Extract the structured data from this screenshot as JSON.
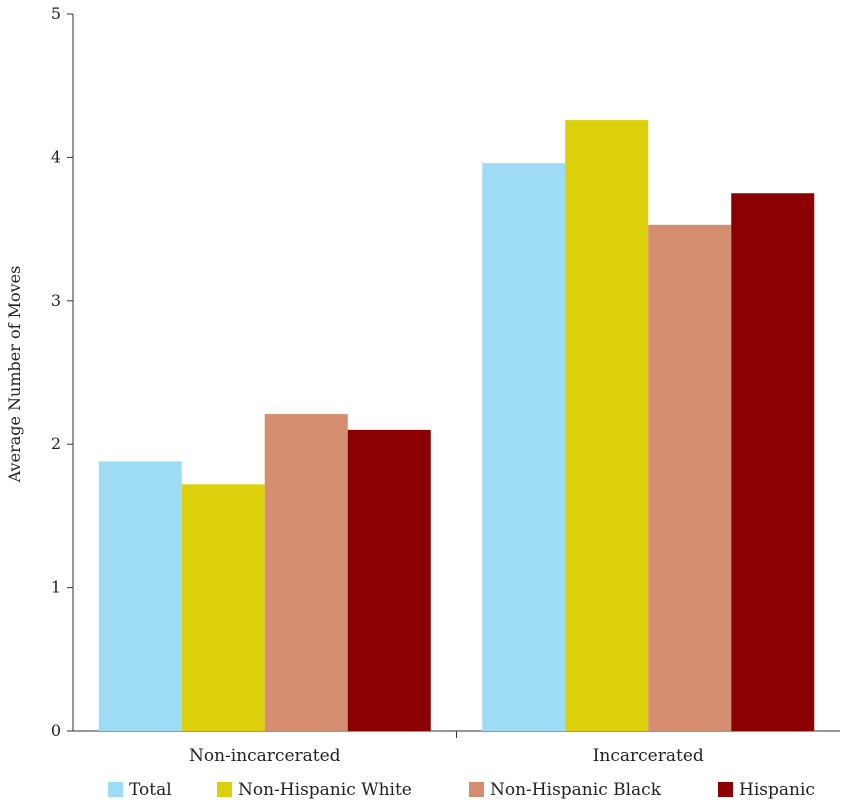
{
  "chart_data": {
    "type": "bar",
    "title": "",
    "xlabel": "",
    "ylabel": "Average Number of Moves",
    "ylim": [
      0,
      5
    ],
    "yticks": [
      0,
      1,
      2,
      3,
      4,
      5
    ],
    "categories": [
      "Non-incarcerated",
      "Incarcerated"
    ],
    "series": [
      {
        "name": "Total",
        "color": "#9edcf5",
        "values": [
          1.88,
          3.96
        ]
      },
      {
        "name": "Non-Hispanic White",
        "color": "#dccf0c",
        "values": [
          1.72,
          4.26
        ]
      },
      {
        "name": "Non-Hispanic Black",
        "color": "#d48e6f",
        "values": [
          2.21,
          3.53
        ]
      },
      {
        "name": "Hispanic",
        "color": "#8b0003",
        "values": [
          2.1,
          3.75
        ]
      }
    ],
    "grid": false,
    "legend_position": "bottom"
  }
}
